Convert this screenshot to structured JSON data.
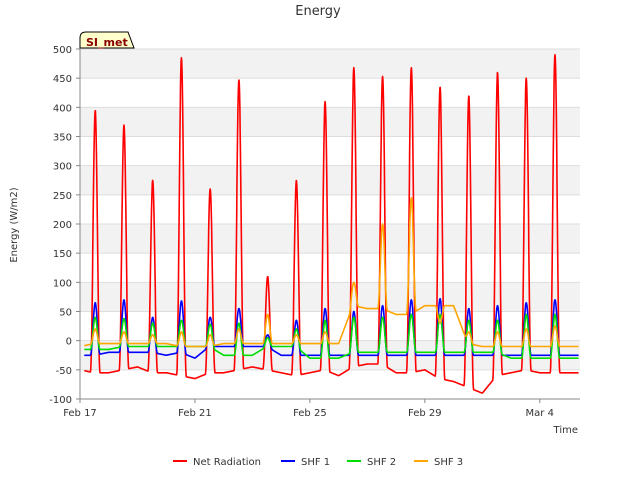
{
  "chart_data": {
    "type": "line",
    "title": "Energy",
    "xlabel": "Time",
    "ylabel": "Energy (W/m2)",
    "badge": "SI_met",
    "ylim": [
      -100,
      500
    ],
    "xlim_days": [
      0,
      17.4
    ],
    "y_ticks": [
      -100,
      -50,
      0,
      50,
      100,
      150,
      200,
      250,
      300,
      350,
      400,
      450,
      500
    ],
    "x_ticks": [
      {
        "day": 0,
        "label": "Feb 17"
      },
      {
        "day": 4,
        "label": "Feb 21"
      },
      {
        "day": 8,
        "label": "Feb 25"
      },
      {
        "day": 12,
        "label": "Feb 29"
      },
      {
        "day": 16,
        "label": "Mar 4"
      }
    ],
    "grid": true,
    "legend_position": "bottom",
    "series": [
      {
        "name": "Net Radiation",
        "color": "#ff0000",
        "night": [
          -50,
          -55,
          -55,
          -50,
          -45,
          -55,
          -55,
          -60,
          -65,
          -55,
          -55,
          -50,
          -45,
          -50,
          -55,
          -60,
          -55,
          -50,
          -60,
          -45,
          -40,
          -40,
          -55,
          -55,
          -50,
          -65,
          -70,
          -80,
          -90,
          -60,
          -55,
          -50,
          -55
        ],
        "peaks": [
          395,
          370,
          275,
          485,
          260,
          447,
          110,
          275,
          410,
          468,
          453,
          468,
          435,
          420,
          460,
          450,
          490
        ]
      },
      {
        "name": "SHF 1",
        "color": "#0000ff",
        "night": [
          -25,
          -25,
          -20,
          -20,
          -20,
          -20,
          -25,
          -20,
          -30,
          -10,
          -10,
          -10,
          -10,
          -10,
          -25,
          -25,
          -25,
          -25,
          -25,
          -25,
          -25,
          -25,
          -25,
          -25,
          -25,
          -25,
          -25,
          -25,
          -25,
          -25,
          -25,
          -25,
          -25
        ],
        "peaks": [
          65,
          70,
          40,
          68,
          40,
          55,
          10,
          35,
          55,
          50,
          60,
          70,
          72,
          55,
          60,
          65,
          70
        ]
      },
      {
        "name": "SHF 2",
        "color": "#00dd00",
        "night": [
          -15,
          -15,
          -15,
          -10,
          -10,
          -10,
          -10,
          -10,
          -10,
          -10,
          -25,
          -25,
          -25,
          -10,
          -10,
          -10,
          -30,
          -30,
          -30,
          -20,
          -20,
          -20,
          -20,
          -20,
          -20,
          -20,
          -20,
          -20,
          -20,
          -20,
          -30,
          -30,
          -30
        ],
        "peaks": [
          40,
          38,
          30,
          35,
          28,
          30,
          5,
          20,
          35,
          40,
          40,
          45,
          45,
          35,
          35,
          45,
          45
        ]
      },
      {
        "name": "SHF 3",
        "color": "#ffa500",
        "night": [
          -10,
          -5,
          -5,
          -5,
          -5,
          -5,
          -5,
          -10,
          -10,
          -10,
          -5,
          -5,
          -5,
          -5,
          -5,
          -5,
          -5,
          -5,
          -5,
          60,
          55,
          55,
          45,
          45,
          60,
          60,
          60,
          -5,
          -10,
          -10,
          -10,
          -10,
          -10
        ],
        "peaks": [
          20,
          15,
          10,
          15,
          10,
          20,
          45,
          10,
          15,
          100,
          200,
          245,
          30,
          15,
          15,
          20,
          25
        ]
      }
    ]
  }
}
